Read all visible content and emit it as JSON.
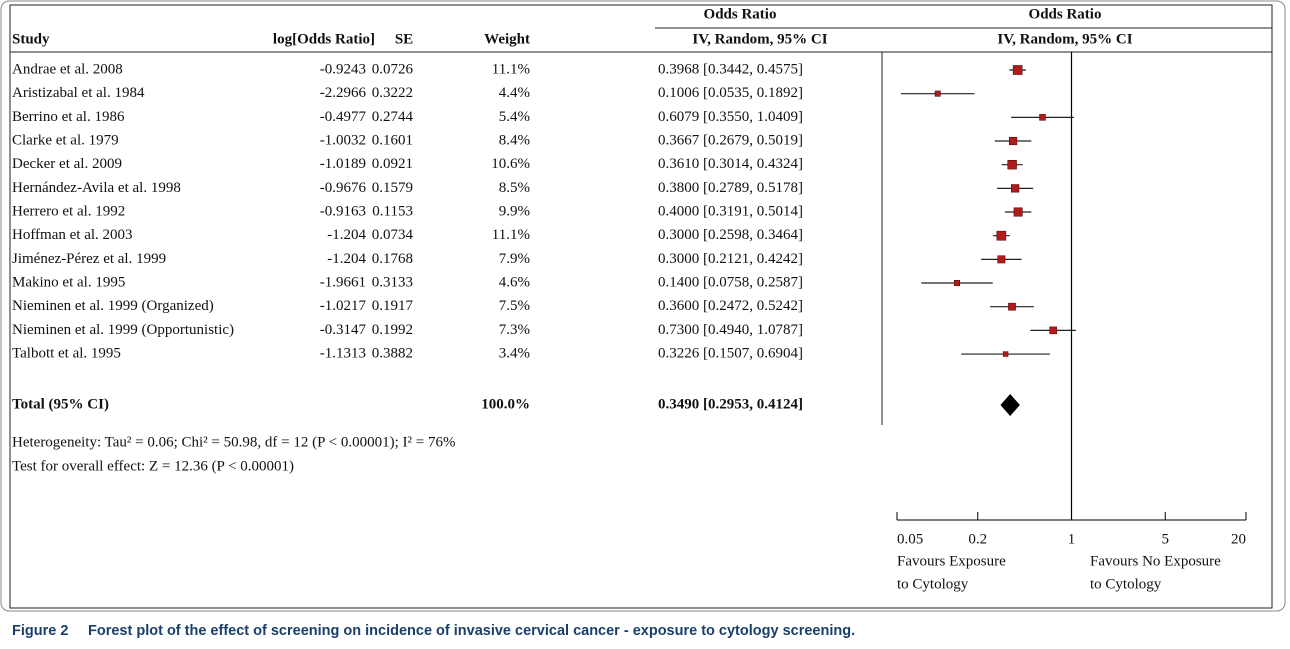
{
  "chart_data": {
    "type": "forest",
    "columns": [
      "Study",
      "log[Odds Ratio]",
      "SE",
      "Weight",
      "IV, Random, 95% CI"
    ],
    "column_group": "Odds Ratio",
    "plot_title": "Odds Ratio",
    "plot_subtitle": "IV, Random, 95% CI",
    "categories": [
      "Andrae et al. 2008",
      "Aristizabal et al. 1984",
      "Berrino et al. 1986",
      "Clarke et al. 1979",
      "Decker et al. 2009",
      "Hernández-Avila et al. 1998",
      "Herrero et al. 1992",
      "Hoffman et al. 2003",
      "Jiménez-Pérez et al. 1999",
      "Makino et al. 1995",
      "Nieminen et al. 1999 (Organized)",
      "Nieminen et al. 1999 (Opportunistic)",
      "Talbott et al. 1995"
    ],
    "log_or": [
      -0.9243,
      -2.2966,
      -0.4977,
      -1.0032,
      -1.0189,
      -0.9676,
      -0.9163,
      -1.204,
      -1.204,
      -1.9661,
      -1.0217,
      -0.3147,
      -1.1313
    ],
    "se": [
      0.0726,
      0.3222,
      0.2744,
      0.1601,
      0.0921,
      0.1579,
      0.1153,
      0.0734,
      0.1768,
      0.3133,
      0.1917,
      0.1992,
      0.3882
    ],
    "weights": [
      11.1,
      4.4,
      5.4,
      8.4,
      10.6,
      8.5,
      9.9,
      11.1,
      7.9,
      4.6,
      7.5,
      7.3,
      3.4
    ],
    "weight_labels": [
      "11.1%",
      "4.4%",
      "5.4%",
      "8.4%",
      "10.6%",
      "8.5%",
      "9.9%",
      "11.1%",
      "7.9%",
      "4.6%",
      "7.5%",
      "7.3%",
      "3.4%"
    ],
    "values": [
      0.3968,
      0.1006,
      0.6079,
      0.3667,
      0.361,
      0.38,
      0.4,
      0.3,
      0.3,
      0.14,
      0.36,
      0.73,
      0.3226
    ],
    "ci_low": [
      0.3442,
      0.0535,
      0.355,
      0.2679,
      0.3014,
      0.2789,
      0.3191,
      0.2598,
      0.2121,
      0.0758,
      0.2472,
      0.494,
      0.1507
    ],
    "ci_high": [
      0.4575,
      0.1892,
      1.0409,
      0.5019,
      0.4324,
      0.5178,
      0.5014,
      0.3464,
      0.4242,
      0.2587,
      0.5242,
      1.0787,
      0.6904
    ],
    "value_labels": [
      "0.3968 [0.3442, 0.4575]",
      "0.1006 [0.0535, 0.1892]",
      "0.6079 [0.3550, 1.0409]",
      "0.3667 [0.2679, 0.5019]",
      "0.3610 [0.3014, 0.4324]",
      "0.3800 [0.2789, 0.5178]",
      "0.4000 [0.3191, 0.5014]",
      "0.3000 [0.2598, 0.3464]",
      "0.3000 [0.2121, 0.4242]",
      "0.1400 [0.0758, 0.2587]",
      "0.3600 [0.2472, 0.5242]",
      "0.7300 [0.4940, 1.0787]",
      "0.3226 [0.1507, 0.6904]"
    ],
    "total": {
      "label": "Total (95% CI)",
      "weight_label": "100.0%",
      "value": 0.349,
      "ci_low": 0.2953,
      "ci_high": 0.4124,
      "value_label": "0.3490 [0.2953, 0.4124]"
    },
    "heterogeneity": "Heterogeneity: Tau² = 0.06; Chi² = 50.98, df = 12 (P < 0.00001); I² = 76%",
    "overall_effect": "Test for overall effect: Z = 12.36 (P < 0.00001)",
    "log_scale": true,
    "xlim": [
      0.05,
      20
    ],
    "xticks": [
      0.05,
      0.2,
      1,
      5,
      20
    ],
    "x_label_left": [
      "Favours Exposure",
      "to Cytology"
    ],
    "x_label_right": [
      "Favours No Exposure",
      "to Cytology"
    ],
    "marker_color": "#b01c1c",
    "caption_label": "Figure 2",
    "caption": "Forest plot of the effect of screening on incidence of invasive cervical cancer - exposure to cytology screening."
  }
}
